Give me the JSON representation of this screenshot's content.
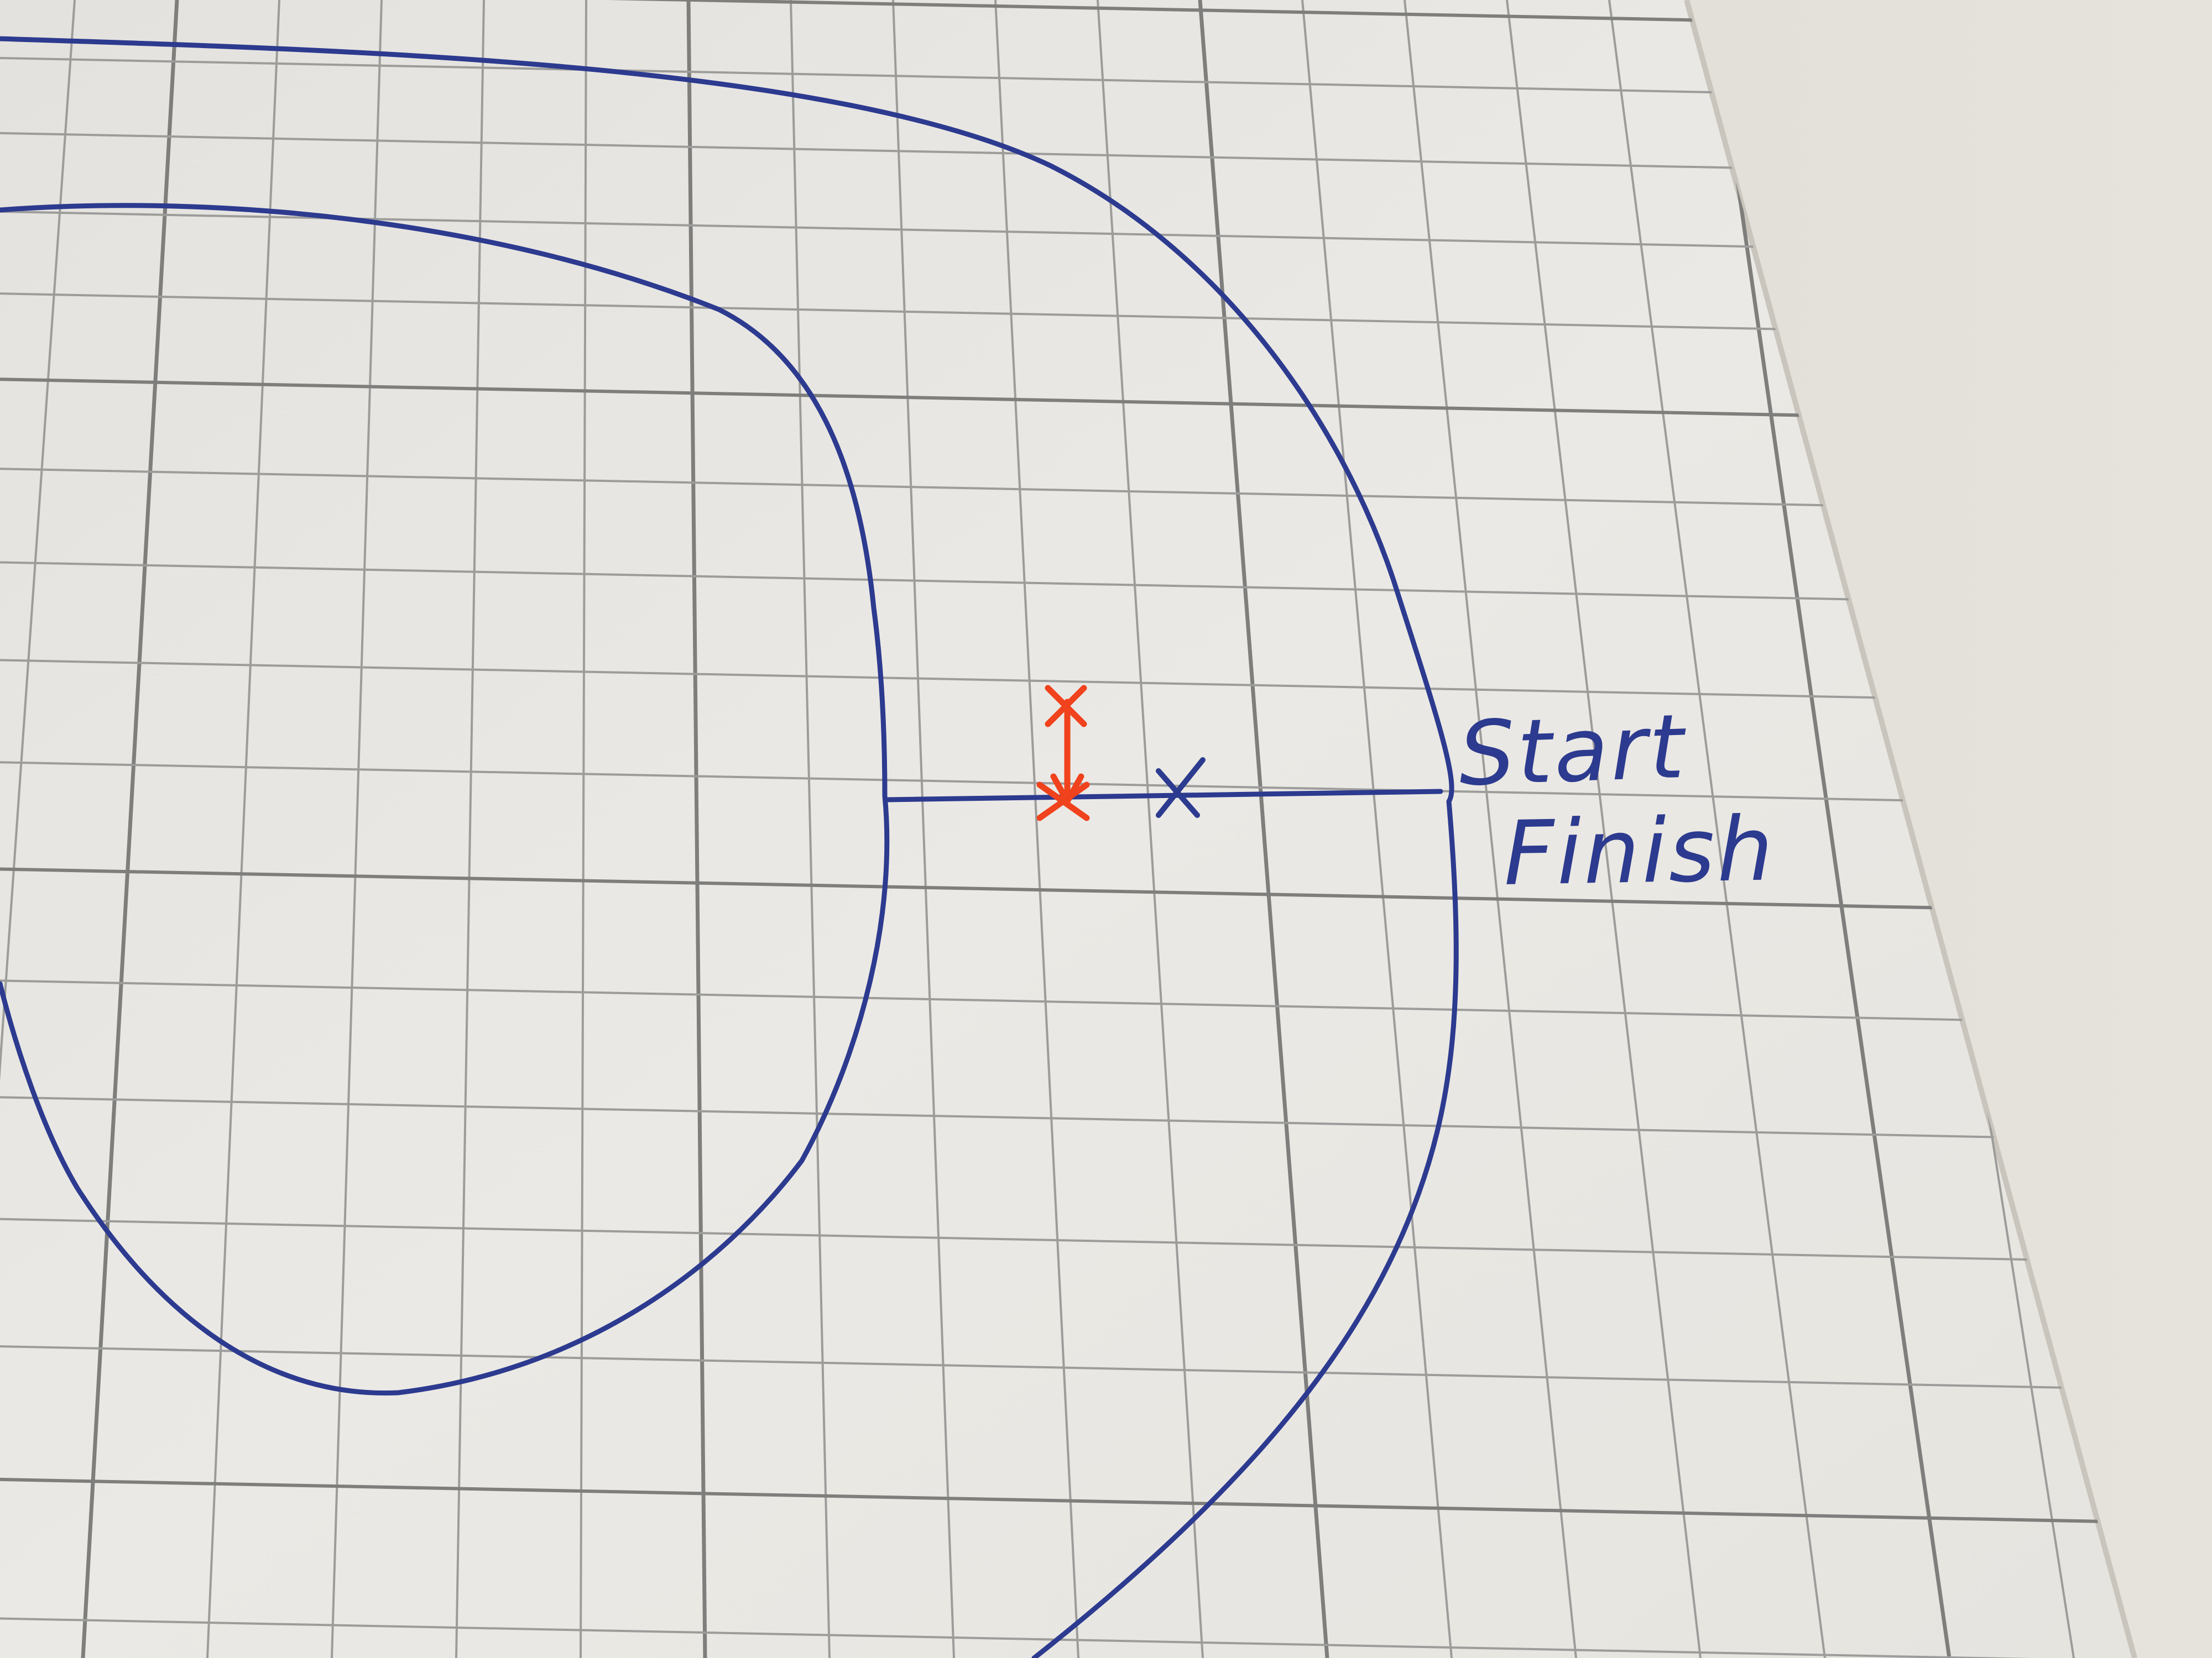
{
  "track": {
    "start_label": "Start",
    "finish_label": "Finish"
  },
  "colors": {
    "paper": "#e9e7e3",
    "paper_shadow": "#d9d6cf",
    "table": "#dcd9d2",
    "grid_line": "#9c9c9a",
    "grid_line_dark": "#7e7e7c",
    "ink_blue": "#2c3a8f",
    "ink_red": "#f0421c"
  },
  "icons": {
    "red_marker": "red-x-mark-icon",
    "blue_marker": "blue-x-mark-icon"
  }
}
